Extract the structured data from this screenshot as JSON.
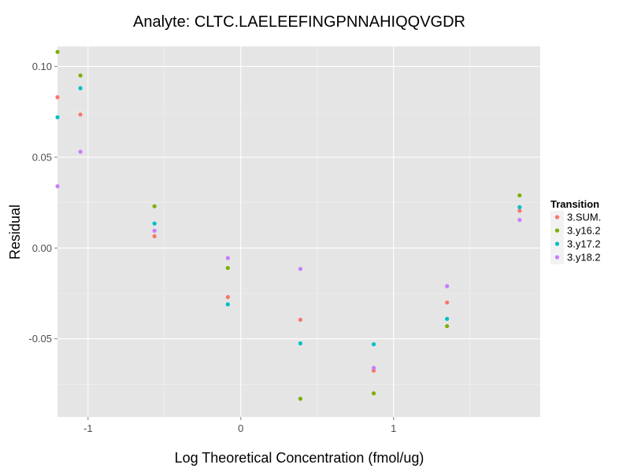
{
  "chart_data": {
    "type": "scatter",
    "title": "Analyte: CLTC.LAELEEFINGPNNAHIQQVGDR",
    "xlabel": "Log Theoretical Concentration (fmol/ug)",
    "ylabel": "Residual",
    "xlim": [
      -1.2,
      1.96
    ],
    "ylim": [
      -0.093,
      0.111
    ],
    "x_ticks": [
      {
        "value": -1,
        "label": "-1"
      },
      {
        "value": 0,
        "label": "0"
      },
      {
        "value": 1,
        "label": "1"
      }
    ],
    "y_ticks": [
      {
        "value": 0.1,
        "label": "0.10"
      },
      {
        "value": 0.05,
        "label": "0.05"
      },
      {
        "value": 0.0,
        "label": "0.00"
      },
      {
        "value": -0.05,
        "label": "-0.05"
      }
    ],
    "grid": true,
    "legend": {
      "title": "Transition",
      "position": "right"
    },
    "series": [
      {
        "name": "3.SUM.",
        "color": "#f8766d",
        "points": [
          [
            -1.2,
            0.083
          ],
          [
            -1.05,
            0.0735
          ],
          [
            -0.565,
            0.0065
          ],
          [
            -0.085,
            -0.027
          ],
          [
            0.39,
            -0.0395
          ],
          [
            0.87,
            -0.0675
          ],
          [
            1.35,
            -0.03
          ],
          [
            1.825,
            0.0205
          ]
        ]
      },
      {
        "name": "3.y16.2",
        "color": "#7cae00",
        "points": [
          [
            -1.2,
            0.108
          ],
          [
            -1.05,
            0.095
          ],
          [
            -0.565,
            0.023
          ],
          [
            -0.085,
            -0.011
          ],
          [
            0.39,
            -0.083
          ],
          [
            0.87,
            -0.08
          ],
          [
            1.35,
            -0.043
          ],
          [
            1.825,
            0.029
          ]
        ]
      },
      {
        "name": "3.y17.2",
        "color": "#00bfc4",
        "points": [
          [
            -1.2,
            0.072
          ],
          [
            -1.05,
            0.088
          ],
          [
            -0.565,
            0.0135
          ],
          [
            -0.085,
            -0.031
          ],
          [
            0.39,
            -0.0525
          ],
          [
            0.87,
            -0.053
          ],
          [
            1.35,
            -0.039
          ],
          [
            1.825,
            0.0225
          ]
        ]
      },
      {
        "name": "3.y18.2",
        "color": "#c77cff",
        "points": [
          [
            -1.2,
            0.034
          ],
          [
            -1.05,
            0.053
          ],
          [
            -0.565,
            0.0095
          ],
          [
            -0.085,
            -0.0055
          ],
          [
            0.39,
            -0.0115
          ],
          [
            0.87,
            -0.066
          ],
          [
            1.35,
            -0.021
          ],
          [
            1.825,
            0.0155
          ]
        ]
      }
    ]
  }
}
